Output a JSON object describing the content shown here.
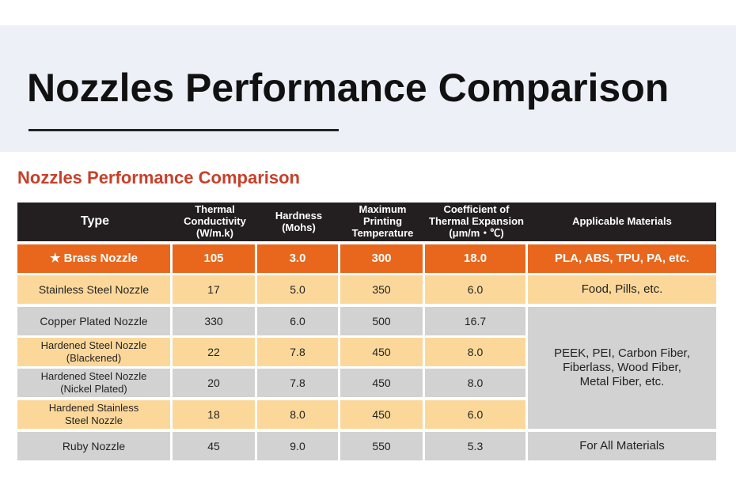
{
  "header": {
    "title": "Nozzles Performance Comparison"
  },
  "subtitle": "Nozzles Performance Comparison",
  "table": {
    "columns": [
      "Type",
      "Thermal Conductivity\n(W/m.k)",
      "Hardness\n(Mohs)",
      "Maximum\nPrinting\nTemperature",
      "Coefficient of\nThermal Expansion\n(μm/m・℃)",
      "Applicable Materials"
    ],
    "rows": [
      [
        "★  Brass Nozzle",
        "105",
        "3.0",
        "300",
        "18.0",
        "PLA, ABS, TPU, PA, etc."
      ],
      [
        "Stainless Steel Nozzle",
        "17",
        "5.0",
        "350",
        "6.0",
        "Food, Pills, etc."
      ],
      [
        "Copper Plated Nozzle",
        "330",
        "6.0",
        "500",
        "16.7",
        "PEEK, PEI, Carbon Fiber,\nFiberlass, Wood Fiber,\nMetal Fiber, etc."
      ],
      [
        "Hardened Steel Nozzle\n(Blackened)",
        "22",
        "7.8",
        "450",
        "8.0"
      ],
      [
        "Hardened Steel Nozzle\n(Nickel Plated)",
        "20",
        "7.8",
        "450",
        "8.0"
      ],
      [
        "Hardened Stainless\nSteel Nozzle",
        "18",
        "8.0",
        "450",
        "6.0"
      ],
      [
        "Ruby Nozzle",
        "45",
        "9.0",
        "550",
        "5.3",
        "For All Materials"
      ]
    ]
  }
}
